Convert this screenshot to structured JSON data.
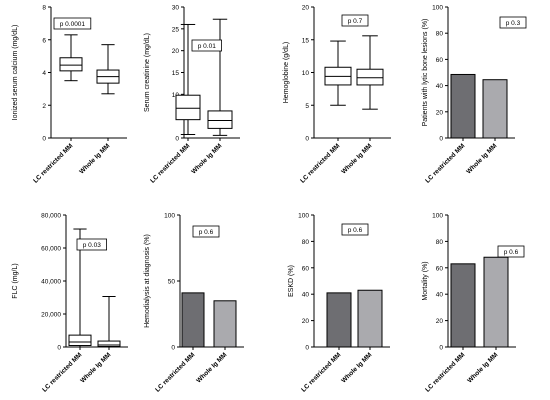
{
  "chart_data": [
    {
      "type": "box",
      "categories": [
        "LC restricted MM",
        "Whole Ig MM"
      ],
      "ylabel": "Ionized serum calcium (mg/dL)",
      "ylim": [
        0,
        8
      ],
      "yticks": [
        0,
        2,
        4,
        6,
        8
      ],
      "annotation": "p 0.0001",
      "boxes": [
        {
          "min": 3.5,
          "q1": 4.1,
          "median": 4.45,
          "q3": 4.9,
          "max": 6.3
        },
        {
          "min": 2.7,
          "q1": 3.35,
          "median": 3.75,
          "q3": 4.15,
          "max": 5.7
        }
      ]
    },
    {
      "type": "box",
      "categories": [
        "LC restricted MM",
        "Whole Ig MM"
      ],
      "ylabel": "Serum creatinine (mg/dL)",
      "ylim": [
        0,
        30
      ],
      "yticks": [
        0,
        5,
        10,
        15,
        20,
        25,
        30
      ],
      "annotation": "p 0.01",
      "boxes": [
        {
          "min": 0.8,
          "q1": 4.2,
          "median": 6.8,
          "q3": 9.8,
          "max": 26
        },
        {
          "min": 0.6,
          "q1": 2.2,
          "median": 4.0,
          "q3": 6.2,
          "max": 27.2
        }
      ]
    },
    {
      "type": "box",
      "categories": [
        "LC restricted MM",
        "Whole Ig MM"
      ],
      "ylabel": "Hemoglobine (g/dL)",
      "ylim": [
        0,
        20
      ],
      "yticks": [
        0,
        5,
        10,
        15,
        20
      ],
      "annotation": "p 0.7",
      "boxes": [
        {
          "min": 5,
          "q1": 8.1,
          "median": 9.4,
          "q3": 10.8,
          "max": 14.8
        },
        {
          "min": 4.4,
          "q1": 8.1,
          "median": 9.2,
          "q3": 10.5,
          "max": 15.6
        }
      ]
    },
    {
      "type": "bar",
      "categories": [
        "LC restricted MM",
        "Whole Ig MM"
      ],
      "values": [
        48.5,
        44.5
      ],
      "ylabel": "Patients with lytic bone lesions (%)",
      "ylim": [
        0,
        100
      ],
      "yticks": [
        0,
        20,
        40,
        60,
        80,
        100
      ],
      "annotation": "p 0.3",
      "colors": [
        "#6e6e72",
        "#aaaaae"
      ]
    },
    {
      "type": "box",
      "categories": [
        "LC restricted MM",
        "Whole Ig MM"
      ],
      "ylabel": "FLC (mg/L)",
      "ylim": [
        0,
        80000
      ],
      "yticks": [
        0,
        20000,
        40000,
        60000,
        80000
      ],
      "ytick_labels": [
        "0",
        "20,000",
        "40,000",
        "60,000",
        "80,000"
      ],
      "annotation": "p 0.03",
      "boxes": [
        {
          "min": 0,
          "q1": 900,
          "median": 3000,
          "q3": 7200,
          "max": 71500
        },
        {
          "min": 0,
          "q1": 300,
          "median": 1200,
          "q3": 3600,
          "max": 30600
        }
      ]
    },
    {
      "type": "bar",
      "categories": [
        "LC restricted MM",
        "Whole Ig MM"
      ],
      "values": [
        41,
        35
      ],
      "ylabel": "Hemodialysis at diagnosis (%)",
      "ylim": [
        0,
        100
      ],
      "yticks": [
        0,
        50,
        100
      ],
      "annotation": "p 0.6",
      "colors": [
        "#6e6e72",
        "#aaaaae"
      ]
    },
    {
      "type": "bar",
      "categories": [
        "LC restricted MM",
        "Whole Ig MM"
      ],
      "values": [
        41,
        43
      ],
      "ylabel": "ESKD (%)",
      "ylim": [
        0,
        100
      ],
      "yticks": [
        0,
        20,
        40,
        60,
        80,
        100
      ],
      "annotation": "p 0.6",
      "colors": [
        "#6e6e72",
        "#aaaaae"
      ]
    },
    {
      "type": "bar",
      "categories": [
        "LC restricted MM",
        "Whole Ig MM"
      ],
      "values": [
        63,
        68
      ],
      "ylabel": "Mortality (%)",
      "ylim": [
        0,
        100
      ],
      "yticks": [
        0,
        20,
        40,
        60,
        80,
        100
      ],
      "annotation": "p 0.6",
      "colors": [
        "#6e6e72",
        "#aaaaae"
      ]
    }
  ]
}
